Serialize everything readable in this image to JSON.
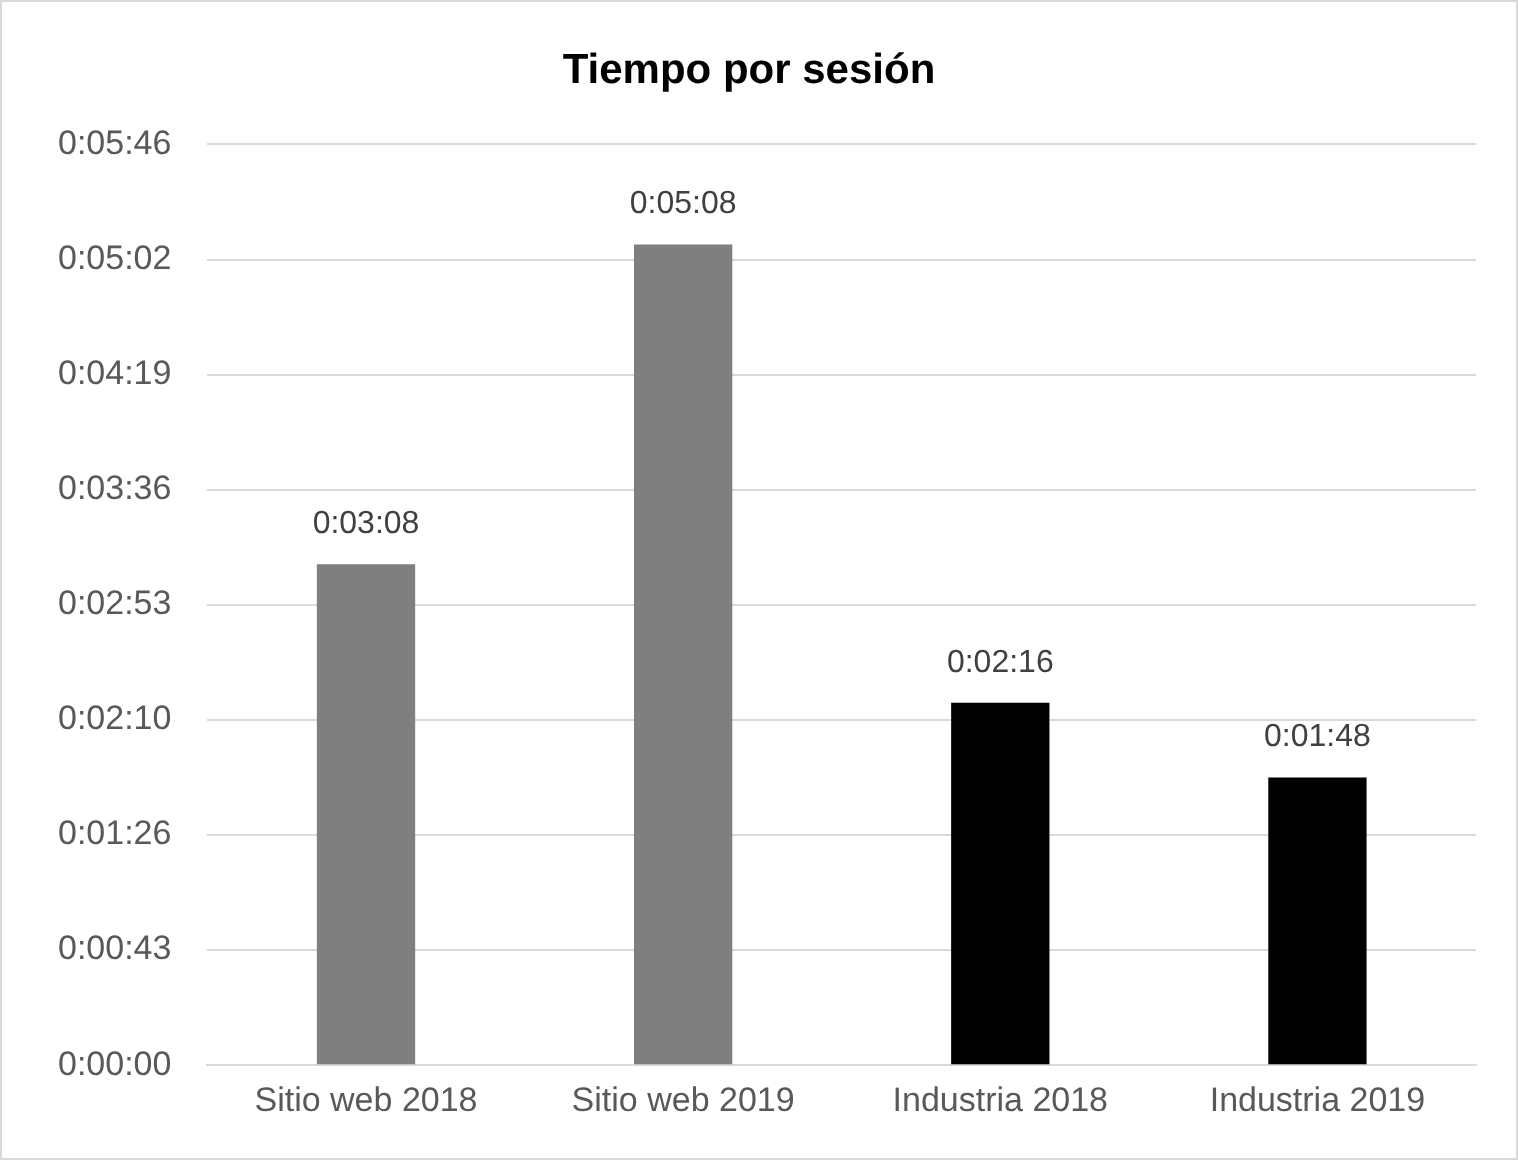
{
  "chart_data": {
    "type": "bar",
    "title": "Tiempo por sesión",
    "categories": [
      "Sitio web 2018",
      "Sitio web 2019",
      "Industria 2018",
      "Industria 2019"
    ],
    "values": [
      188,
      308,
      136,
      108
    ],
    "colors": [
      "#7f7f7f",
      "#7f7f7f",
      "#000000",
      "#000000"
    ],
    "value_labels": [
      "0:03:08",
      "0:05:08",
      "0:02:16",
      "0:01:48"
    ],
    "ylim": [
      0,
      345.6
    ],
    "yticks": [
      {
        "value": 0,
        "label": "0:00:00"
      },
      {
        "value": 43.2,
        "label": "0:00:43"
      },
      {
        "value": 86.4,
        "label": "0:01:26"
      },
      {
        "value": 129.6,
        "label": "0:02:10"
      },
      {
        "value": 172.8,
        "label": "0:02:53"
      },
      {
        "value": 216,
        "label": "0:03:36"
      },
      {
        "value": 259.2,
        "label": "0:04:19"
      },
      {
        "value": 302.4,
        "label": "0:05:02"
      },
      {
        "value": 345.6,
        "label": "0:05:46"
      }
    ],
    "grid": "y"
  }
}
